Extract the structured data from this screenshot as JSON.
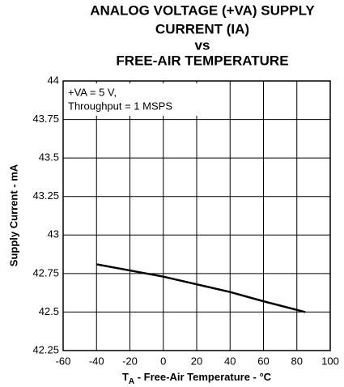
{
  "chart_data": {
    "type": "line",
    "title": [
      "ANALOG VOLTAGE (+VA) SUPPLY",
      "CURRENT (IA)",
      "vs",
      "FREE-AIR TEMPERATURE"
    ],
    "ylabel": "Supply Current - mA",
    "xlabel": [
      "T",
      "A",
      " - Free-Air Temperature - °C"
    ],
    "annotations": [
      "+VA = 5 V,",
      "Throughput  = 1 MSPS"
    ],
    "x": [
      -40,
      -20,
      0,
      20,
      40,
      60,
      85
    ],
    "series": [
      {
        "color": "#000000",
        "values": [
          42.81,
          42.77,
          42.73,
          42.68,
          42.63,
          42.57,
          42.5
        ]
      }
    ],
    "xlim": [
      -60,
      100
    ],
    "xticks": [
      -60,
      -40,
      -20,
      0,
      20,
      40,
      60,
      80,
      100
    ],
    "ylim": [
      42.25,
      44
    ],
    "yticks": [
      42.25,
      42.5,
      42.75,
      43,
      43.25,
      43.5,
      43.75,
      44
    ],
    "grid": true
  }
}
